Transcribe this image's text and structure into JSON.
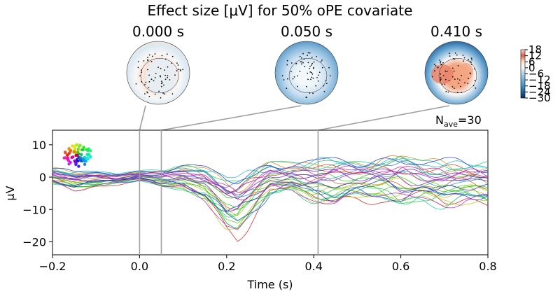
{
  "title": "Effect size [μV] for 50% oPE covariate",
  "nave": {
    "label": "N",
    "sub": "ave",
    "value": "=30"
  },
  "topomaps": [
    {
      "label": "0.000 s",
      "time": 0.0
    },
    {
      "label": "0.050 s",
      "time": 0.05
    },
    {
      "label": "0.410 s",
      "time": 0.41
    }
  ],
  "colorbar": {
    "ticks": [
      "18",
      "12",
      "6",
      "0",
      "−6",
      "−12",
      "−18",
      "−24",
      "−30"
    ],
    "tick_values": [
      18,
      12,
      6,
      0,
      -6,
      -12,
      -18,
      -24,
      -30
    ],
    "range": [
      -30,
      18
    ],
    "colors": {
      "positive": "#d6604d",
      "zero": "#f7f7f7",
      "negative": "#2166ac"
    }
  },
  "chart_data": {
    "type": "line",
    "xlabel": "Time (s)",
    "ylabel": "μV",
    "xlim": [
      -0.2,
      0.8
    ],
    "ylim": [
      -24,
      14.5
    ],
    "xticks": [
      -0.2,
      0.0,
      0.2,
      0.4,
      0.6,
      0.8
    ],
    "xtick_labels": [
      "−0.2",
      "0.0",
      "0.2",
      "0.4",
      "0.6",
      "0.8"
    ],
    "yticks": [
      -20,
      -10,
      0,
      10
    ],
    "ytick_labels": [
      "−20",
      "−10",
      "0",
      "10"
    ],
    "marked_times": [
      0.0,
      0.05,
      0.41
    ],
    "channel_count": 30,
    "envelope": {
      "x": [
        -0.2,
        -0.15,
        -0.1,
        -0.05,
        0.0,
        0.05,
        0.1,
        0.15,
        0.2,
        0.225,
        0.25,
        0.3,
        0.35,
        0.4,
        0.45,
        0.5,
        0.55,
        0.6,
        0.65,
        0.7,
        0.75,
        0.8
      ],
      "min": [
        -3,
        -5,
        -4,
        -3,
        -2,
        -4,
        -5,
        -10,
        -20,
        -22,
        -18,
        -8,
        -6,
        -10,
        -12,
        -10,
        -10,
        -12,
        -10,
        -12,
        -10,
        -12
      ],
      "max": [
        4,
        3,
        3,
        2,
        3,
        4,
        5,
        6,
        5,
        6,
        7,
        8,
        7,
        8,
        9,
        9,
        10,
        12,
        8,
        9,
        7,
        8
      ]
    }
  }
}
